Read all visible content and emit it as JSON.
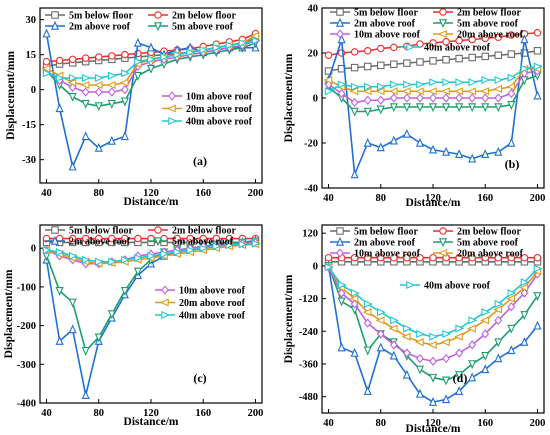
{
  "figure": {
    "colors": {
      "5m below floor": "#6d6d6d",
      "2m below floor": "#ef2f2f",
      "2m above roof": "#1f6fd6",
      "5m above roof": "#1a9e6a",
      "10m above roof": "#c060e0",
      "20m above roof": "#e09a18",
      "40m above roof": "#20c6d6"
    }
  },
  "chart_data": [
    {
      "panel": "(a)",
      "type": "line",
      "xlabel": "Distance/m",
      "ylabel": "Displacement/mm",
      "xlim": [
        35,
        205
      ],
      "ylim": [
        -40,
        35
      ],
      "xticks": [
        40,
        80,
        120,
        160,
        200
      ],
      "yticks": [
        -30,
        -15,
        0,
        15,
        30
      ],
      "x": [
        40,
        50,
        60,
        70,
        80,
        90,
        100,
        110,
        120,
        130,
        140,
        150,
        160,
        170,
        180,
        190,
        200
      ],
      "series": [
        {
          "name": "5m below floor",
          "marker": "square",
          "values": [
            10,
            11,
            11.5,
            12,
            12.5,
            13,
            13.5,
            14,
            14.5,
            15,
            15.5,
            16,
            17,
            18,
            19,
            20,
            22
          ]
        },
        {
          "name": "2m below floor",
          "marker": "circle",
          "values": [
            12,
            12.5,
            13,
            13.5,
            14,
            14.5,
            15,
            15.5,
            16,
            16.5,
            17,
            17.5,
            18.5,
            19.5,
            20.5,
            21.5,
            24
          ]
        },
        {
          "name": "2m above roof",
          "marker": "triangle-up",
          "values": [
            24,
            -8,
            -33,
            -20,
            -25,
            -22,
            -20,
            20,
            18,
            15,
            17,
            18,
            16,
            17,
            18,
            18,
            18
          ]
        },
        {
          "name": "5m above roof",
          "marker": "triangle-down",
          "values": [
            8,
            2,
            -3,
            -6,
            -7,
            -6,
            -5,
            6,
            9,
            11,
            13,
            14,
            15,
            16,
            17,
            18,
            20
          ]
        },
        {
          "name": "10m above roof",
          "marker": "diamond",
          "values": [
            8,
            4,
            1,
            -1,
            -1,
            -1,
            0,
            10,
            12,
            13,
            14,
            15,
            16,
            17,
            18,
            19,
            21
          ]
        },
        {
          "name": "20m above roof",
          "marker": "triangle-left",
          "values": [
            9,
            6,
            3,
            2,
            2,
            2,
            3,
            11,
            13,
            14,
            15,
            16,
            17,
            18,
            19,
            20,
            23
          ]
        },
        {
          "name": "40m above roof",
          "marker": "triangle-right",
          "values": [
            7,
            5,
            5,
            5,
            5,
            6,
            7,
            12,
            13,
            14,
            15,
            16,
            17,
            18,
            19,
            20,
            21
          ]
        }
      ]
    },
    {
      "panel": "(b)",
      "type": "line",
      "xlabel": "Distance/m",
      "ylabel": "Displacement/mm",
      "xlim": [
        35,
        205
      ],
      "ylim": [
        -40,
        40
      ],
      "xticks": [
        40,
        80,
        120,
        160,
        200
      ],
      "yticks": [
        -40,
        -20,
        0,
        20,
        40
      ],
      "x": [
        40,
        50,
        60,
        70,
        80,
        90,
        100,
        110,
        120,
        130,
        140,
        150,
        160,
        170,
        180,
        190,
        200
      ],
      "series": [
        {
          "name": "5m below floor",
          "marker": "square",
          "values": [
            12,
            13,
            13.5,
            14,
            14.5,
            15,
            15.5,
            16,
            16.5,
            17,
            17.5,
            18,
            18.5,
            19,
            19.5,
            20,
            21
          ]
        },
        {
          "name": "2m below floor",
          "marker": "circle",
          "values": [
            19,
            20,
            20.5,
            21,
            22,
            22.5,
            23,
            24,
            24.5,
            25,
            25.5,
            26,
            26.5,
            27,
            28,
            28.5,
            29
          ]
        },
        {
          "name": "2m above roof",
          "marker": "triangle-up",
          "values": [
            8,
            26,
            -34,
            -20,
            -22,
            -19,
            -16,
            -20,
            -23,
            -24,
            -25,
            -27,
            -25,
            -24,
            -20,
            26,
            1
          ]
        },
        {
          "name": "5m above roof",
          "marker": "triangle-down",
          "values": [
            5,
            0,
            -6,
            -6,
            -5,
            -4,
            -4,
            -4,
            -4,
            -4,
            -4,
            -4,
            -4,
            -4,
            -3,
            8,
            10
          ]
        },
        {
          "name": "10m above roof",
          "marker": "diamond",
          "values": [
            6,
            2,
            -2,
            -1,
            -1,
            0,
            0,
            0,
            0,
            0,
            0,
            0,
            0,
            0,
            2,
            11,
            12
          ]
        },
        {
          "name": "20m above roof",
          "marker": "triangle-left",
          "values": [
            8,
            5,
            3,
            3,
            3,
            3,
            3,
            3,
            3,
            3,
            3,
            3,
            3,
            4,
            5,
            13,
            13
          ]
        },
        {
          "name": "40m above roof",
          "marker": "triangle-right",
          "values": [
            3,
            6,
            5,
            5,
            5,
            6,
            6,
            6,
            7,
            7,
            7,
            7,
            8,
            8,
            9,
            13,
            14
          ]
        }
      ]
    },
    {
      "panel": "(c)",
      "type": "line",
      "xlabel": "Distance/m",
      "ylabel": "Displacement/mm",
      "xlim": [
        35,
        205
      ],
      "ylim": [
        -400,
        60
      ],
      "xticks": [
        40,
        80,
        120,
        160,
        200
      ],
      "yticks": [
        -400,
        -300,
        -200,
        -100,
        0
      ],
      "x": [
        40,
        50,
        60,
        70,
        80,
        90,
        100,
        110,
        120,
        130,
        140,
        150,
        160,
        170,
        180,
        190,
        200
      ],
      "series": [
        {
          "name": "5m below floor",
          "marker": "square",
          "values": [
            15,
            15,
            15,
            15,
            15,
            15,
            15,
            15,
            15,
            15,
            15,
            15,
            15,
            15,
            15,
            15,
            15
          ]
        },
        {
          "name": "2m below floor",
          "marker": "circle",
          "values": [
            25,
            25,
            25,
            25,
            25,
            25,
            25,
            25,
            25,
            25,
            25,
            25,
            25,
            25,
            25,
            25,
            25
          ]
        },
        {
          "name": "2m above roof",
          "marker": "triangle-up",
          "values": [
            -30,
            -240,
            -210,
            -380,
            -240,
            -180,
            -120,
            -70,
            -40,
            -20,
            -10,
            -5,
            0,
            5,
            10,
            15,
            20
          ]
        },
        {
          "name": "5m above roof",
          "marker": "triangle-down",
          "values": [
            -20,
            -110,
            -140,
            -265,
            -230,
            -170,
            -110,
            -60,
            -30,
            -10,
            -5,
            0,
            5,
            10,
            12,
            15,
            18
          ]
        },
        {
          "name": "10m above roof",
          "marker": "diamond",
          "values": [
            -5,
            -20,
            -30,
            -40,
            -40,
            -35,
            -30,
            -20,
            -15,
            -10,
            -5,
            0,
            5,
            8,
            10,
            12,
            15
          ]
        },
        {
          "name": "20m above roof",
          "marker": "triangle-left",
          "values": [
            -5,
            -15,
            -25,
            -35,
            -40,
            -38,
            -35,
            -30,
            -25,
            -20,
            -15,
            -10,
            -5,
            0,
            5,
            8,
            10
          ]
        },
        {
          "name": "40m above roof",
          "marker": "triangle-right",
          "values": [
            -5,
            -10,
            -20,
            -30,
            -35,
            -35,
            -30,
            -25,
            -20,
            -15,
            -10,
            -5,
            0,
            5,
            8,
            10,
            12
          ]
        }
      ]
    },
    {
      "panel": "(d)",
      "type": "line",
      "xlabel": "Distance/m",
      "ylabel": "Displacement/mm",
      "xlim": [
        35,
        205
      ],
      "ylim": [
        -540,
        150
      ],
      "xticks": [
        40,
        80,
        120,
        160,
        200
      ],
      "yticks": [
        -480,
        -360,
        -240,
        -120,
        0,
        120
      ],
      "x": [
        40,
        50,
        60,
        70,
        80,
        90,
        100,
        110,
        120,
        130,
        140,
        150,
        160,
        170,
        180,
        190,
        200
      ],
      "series": [
        {
          "name": "5m below floor",
          "marker": "square",
          "values": [
            15,
            15,
            15,
            15,
            15,
            15,
            15,
            15,
            15,
            15,
            15,
            15,
            15,
            15,
            15,
            15,
            15
          ]
        },
        {
          "name": "2m below floor",
          "marker": "circle",
          "values": [
            30,
            30,
            30,
            30,
            30,
            30,
            30,
            30,
            30,
            30,
            30,
            30,
            30,
            30,
            30,
            30,
            30
          ]
        },
        {
          "name": "2m above roof",
          "marker": "triangle-up",
          "values": [
            0,
            -300,
            -320,
            -460,
            -300,
            -330,
            -400,
            -470,
            -500,
            -490,
            -460,
            -410,
            -380,
            -340,
            -310,
            -280,
            -220
          ]
        },
        {
          "name": "5m above roof",
          "marker": "triangle-down",
          "values": [
            0,
            -130,
            -160,
            -310,
            -250,
            -280,
            -330,
            -380,
            -410,
            -420,
            -400,
            -360,
            -330,
            -280,
            -230,
            -180,
            -110
          ]
        },
        {
          "name": "10m above roof",
          "marker": "diamond",
          "values": [
            -5,
            -100,
            -140,
            -210,
            -250,
            -290,
            -320,
            -340,
            -350,
            -340,
            -320,
            -290,
            -250,
            -200,
            -150,
            -100,
            -30
          ]
        },
        {
          "name": "20m above roof",
          "marker": "triangle-left",
          "values": [
            -5,
            -80,
            -120,
            -170,
            -200,
            -230,
            -260,
            -280,
            -290,
            -280,
            -260,
            -230,
            -200,
            -160,
            -120,
            -80,
            -20
          ]
        },
        {
          "name": "40m above roof",
          "marker": "triangle-right",
          "values": [
            -5,
            -70,
            -100,
            -140,
            -170,
            -200,
            -230,
            -250,
            -260,
            -250,
            -230,
            -200,
            -170,
            -140,
            -100,
            -60,
            -10
          ]
        }
      ]
    }
  ]
}
